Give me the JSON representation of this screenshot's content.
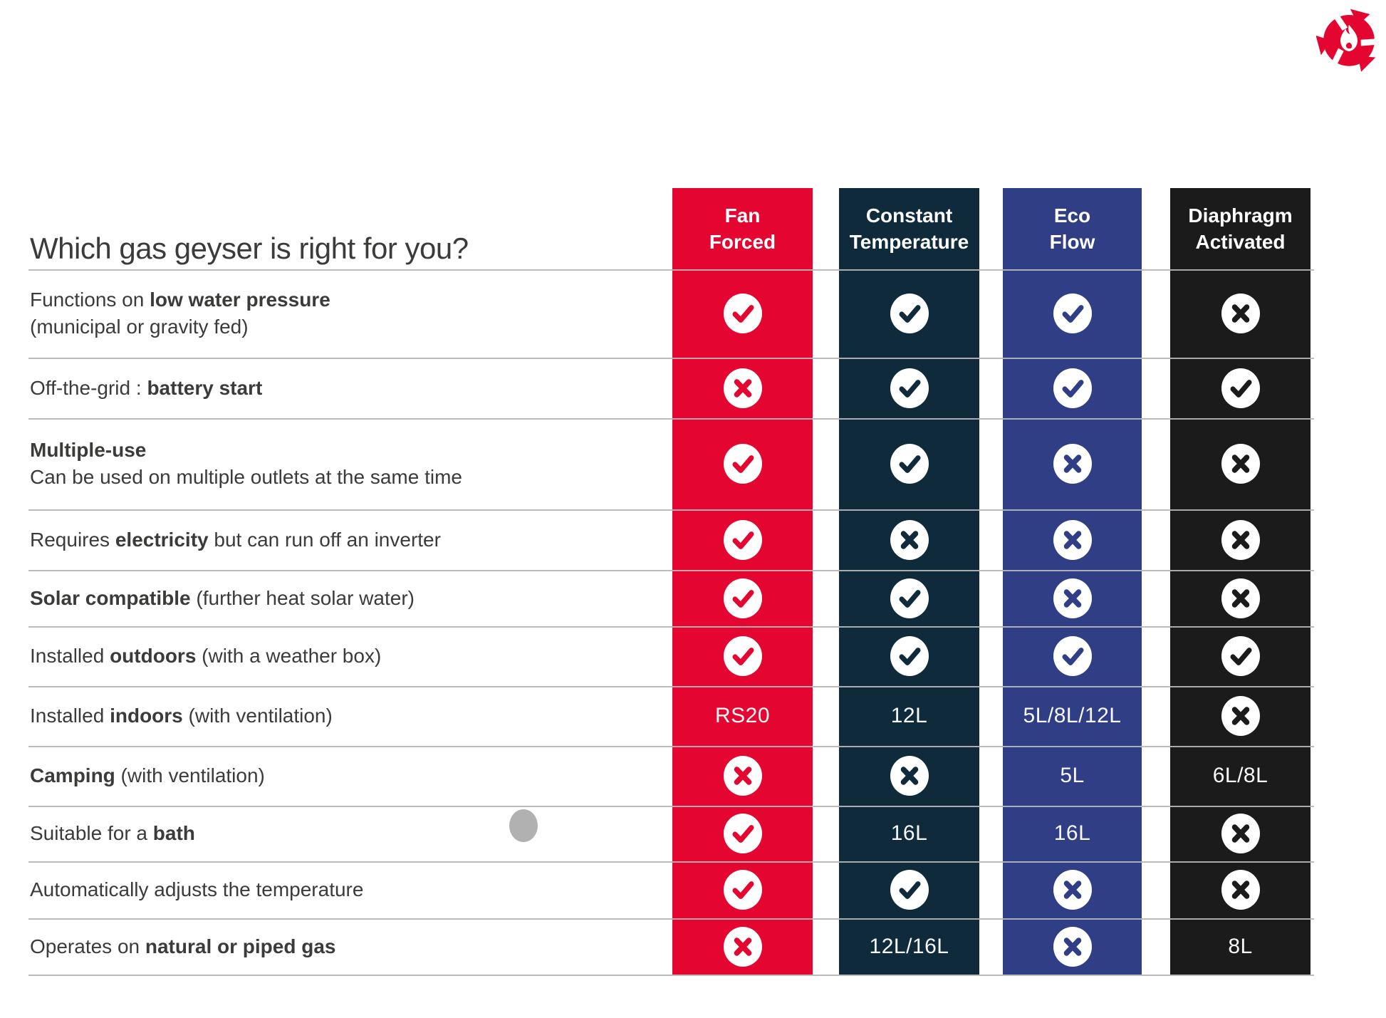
{
  "title": "Which gas geyser is right for you?",
  "colors": {
    "red": "#e40530",
    "navy": "#0e2a3b",
    "blue": "#303f85",
    "black": "#1b1b1b",
    "gridline": "#b6b6b6",
    "label_text": "#3b3b3a",
    "marker_dot": "#b1b1b1",
    "logo_red": "#e40530"
  },
  "columns": [
    {
      "id": "fan-forced",
      "label": "Fan\nForced",
      "color": "#e40530"
    },
    {
      "id": "constant-temperature",
      "label": "Constant\nTemperature",
      "color": "#0e2a3b"
    },
    {
      "id": "eco-flow",
      "label": "Eco\nFlow",
      "color": "#303f85"
    },
    {
      "id": "diaphragm-activated",
      "label": "Diaphragm\nActivated",
      "color": "#1b1b1b"
    }
  ],
  "icons": {
    "check": "check-icon",
    "cross": "cross-icon"
  },
  "rows": [
    {
      "lines": [
        [
          {
            "t": "Functions on ",
            "b": false
          },
          {
            "t": "low water pressure",
            "b": true
          }
        ],
        [
          {
            "t": "(municipal or gravity fed)",
            "b": false
          }
        ]
      ],
      "cells": [
        "check",
        "check",
        "check",
        "cross"
      ]
    },
    {
      "lines": [
        [
          {
            "t": "Off-the-grid : ",
            "b": false
          },
          {
            "t": "battery start",
            "b": true
          }
        ]
      ],
      "cells": [
        "cross",
        "check",
        "check",
        "check"
      ]
    },
    {
      "lines": [
        [
          {
            "t": "Multiple-use",
            "b": true
          }
        ],
        [
          {
            "t": "Can be used on multiple outlets at the same time",
            "b": false
          }
        ]
      ],
      "cells": [
        "check",
        "check",
        "cross",
        "cross"
      ]
    },
    {
      "lines": [
        [
          {
            "t": "Requires ",
            "b": false
          },
          {
            "t": "electricity",
            "b": true
          },
          {
            "t": " but can run off an inverter",
            "b": false
          }
        ]
      ],
      "cells": [
        "check",
        "cross",
        "cross",
        "cross"
      ]
    },
    {
      "lines": [
        [
          {
            "t": "Solar compatible",
            "b": true
          },
          {
            "t": " (further heat solar water)",
            "b": false
          }
        ]
      ],
      "cells": [
        "check",
        "check",
        "cross",
        "cross"
      ]
    },
    {
      "lines": [
        [
          {
            "t": "Installed ",
            "b": false
          },
          {
            "t": "outdoors",
            "b": true
          },
          {
            "t": " (with a weather box)",
            "b": false
          }
        ]
      ],
      "cells": [
        "check",
        "check",
        "check",
        "check"
      ]
    },
    {
      "lines": [
        [
          {
            "t": "Installed ",
            "b": false
          },
          {
            "t": "indoors",
            "b": true
          },
          {
            "t": " (with ventilation)",
            "b": false
          }
        ]
      ],
      "cells": [
        "RS20",
        "12L",
        "5L/8L/12L",
        "cross"
      ]
    },
    {
      "lines": [
        [
          {
            "t": "Camping",
            "b": true
          },
          {
            "t": " (with ventilation)",
            "b": false
          }
        ]
      ],
      "cells": [
        "cross",
        "cross",
        "5L",
        "6L/8L"
      ]
    },
    {
      "lines": [
        [
          {
            "t": "Suitable for a ",
            "b": false
          },
          {
            "t": "bath",
            "b": true
          }
        ]
      ],
      "cells": [
        "check",
        "16L",
        "16L",
        "cross"
      ],
      "marker": true
    },
    {
      "lines": [
        [
          {
            "t": "Automatically adjusts the temperature",
            "b": false
          }
        ]
      ],
      "cells": [
        "check",
        "check",
        "cross",
        "cross"
      ]
    },
    {
      "lines": [
        [
          {
            "t": "Operates on ",
            "b": false
          },
          {
            "t": "natural or piped gas",
            "b": true
          }
        ]
      ],
      "cells": [
        "cross",
        "12L/16L",
        "cross",
        "8L"
      ]
    }
  ],
  "chart_data": {
    "type": "table",
    "title": "Which gas geyser is right for you?",
    "columns": [
      "Fan Forced",
      "Constant Temperature",
      "Eco Flow",
      "Diaphragm Activated"
    ],
    "rows": [
      {
        "feature": "Functions on low water pressure (municipal or gravity fed)",
        "values": [
          "yes",
          "yes",
          "yes",
          "no"
        ]
      },
      {
        "feature": "Off-the-grid : battery start",
        "values": [
          "no",
          "yes",
          "yes",
          "yes"
        ]
      },
      {
        "feature": "Multiple-use — Can be used on multiple outlets at the same time",
        "values": [
          "yes",
          "yes",
          "no",
          "no"
        ]
      },
      {
        "feature": "Requires electricity but can run off an inverter",
        "values": [
          "yes",
          "no",
          "no",
          "no"
        ]
      },
      {
        "feature": "Solar compatible (further heat solar water)",
        "values": [
          "yes",
          "yes",
          "no",
          "no"
        ]
      },
      {
        "feature": "Installed outdoors (with a weather box)",
        "values": [
          "yes",
          "yes",
          "yes",
          "yes"
        ]
      },
      {
        "feature": "Installed indoors (with ventilation)",
        "values": [
          "RS20",
          "12L",
          "5L/8L/12L",
          "no"
        ]
      },
      {
        "feature": "Camping (with ventilation)",
        "values": [
          "no",
          "no",
          "5L",
          "6L/8L"
        ]
      },
      {
        "feature": "Suitable for a bath",
        "values": [
          "yes",
          "16L",
          "16L",
          "no"
        ]
      },
      {
        "feature": "Automatically adjusts the temperature",
        "values": [
          "yes",
          "yes",
          "no",
          "no"
        ]
      },
      {
        "feature": "Operates on natural or piped gas",
        "values": [
          "no",
          "12L/16L",
          "no",
          "8L"
        ]
      }
    ]
  }
}
